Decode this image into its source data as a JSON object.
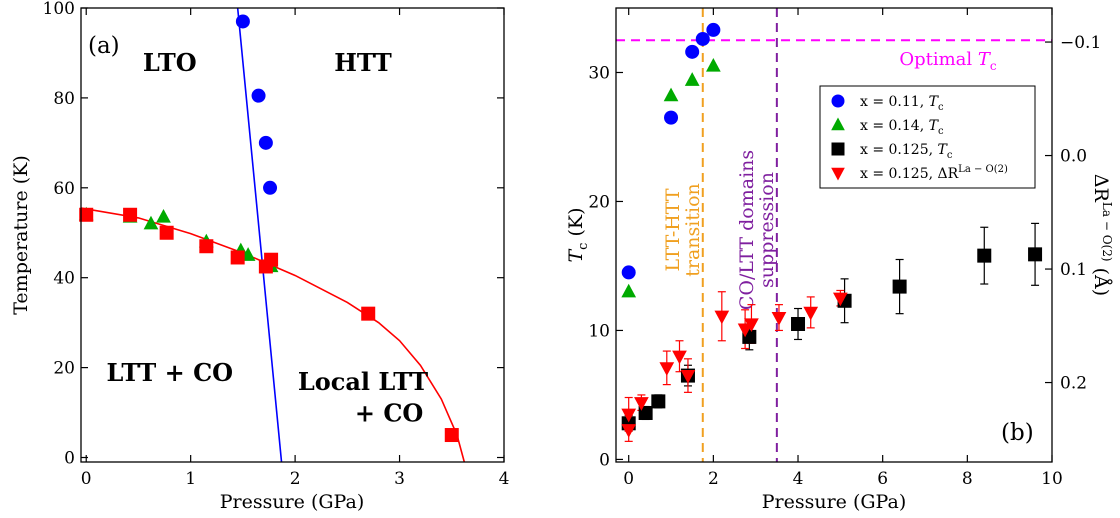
{
  "chart_data": [
    {
      "panel": "(a)",
      "type": "scatter",
      "xlabel": "Pressure (GPa)",
      "ylabel": "Temperature (K)",
      "xlim": [
        -0.05,
        4
      ],
      "ylim": [
        -1,
        100
      ],
      "xticks": [
        "0",
        "1",
        "2",
        "3",
        "4"
      ],
      "yticks": [
        "0",
        "20",
        "40",
        "60",
        "80",
        "100"
      ],
      "region_labels": [
        {
          "text": "LTO",
          "x": 0.8,
          "y": 86
        },
        {
          "text": "HTT",
          "x": 2.65,
          "y": 86
        },
        {
          "text": "LTT + CO",
          "x": 0.8,
          "y": 17
        },
        {
          "text": "Local LTT",
          "x": 2.65,
          "y": 15
        },
        {
          "text": "+ CO",
          "x": 2.9,
          "y": 8
        }
      ],
      "series": [
        {
          "marker": "circle",
          "color": "#0000ff",
          "points": [
            [
              1.5,
              97
            ],
            [
              1.65,
              80.5
            ],
            [
              1.72,
              70
            ],
            [
              1.76,
              60
            ]
          ]
        },
        {
          "marker": "triangle",
          "color": "#00aa00",
          "points": [
            [
              0.0,
              54
            ],
            [
              0.42,
              53.5
            ],
            [
              0.62,
              52
            ],
            [
              0.74,
              53.5
            ],
            [
              1.15,
              48
            ],
            [
              1.48,
              46
            ],
            [
              1.55,
              45
            ],
            [
              1.77,
              42.5
            ]
          ]
        },
        {
          "marker": "square",
          "color": "#ff0000",
          "points": [
            [
              0.0,
              54
            ],
            [
              0.42,
              54
            ],
            [
              0.77,
              50
            ],
            [
              1.15,
              47
            ],
            [
              1.45,
              44.5
            ],
            [
              1.72,
              42.5
            ],
            [
              1.77,
              44
            ],
            [
              2.7,
              32
            ],
            [
              3.5,
              5
            ]
          ]
        }
      ],
      "lines": [
        {
          "name": "LTO-HTT boundary",
          "color": "#0000ff",
          "points": [
            [
              1.45,
              100
            ],
            [
              1.87,
              -1
            ]
          ]
        },
        {
          "name": "LTT boundary",
          "color": "#ff0000",
          "points": [
            [
              -0.05,
              55.5
            ],
            [
              0.5,
              53.3
            ],
            [
              1.0,
              49.8
            ],
            [
              1.5,
              45.5
            ],
            [
              2.0,
              40.5
            ],
            [
              2.5,
              34.5
            ],
            [
              2.8,
              30
            ],
            [
              3.0,
              26
            ],
            [
              3.2,
              20.5
            ],
            [
              3.4,
              13
            ],
            [
              3.55,
              5
            ],
            [
              3.62,
              -1
            ]
          ]
        }
      ]
    },
    {
      "panel": "(b)",
      "type": "scatter",
      "xlabel": "Pressure (GPa)",
      "ylabel_main": "T",
      "ylabel_sub": "c",
      "ylabel_unit": " (K)",
      "ylabel_right_prefix": "ΔR",
      "ylabel_right_sup": "La − O(2)",
      "ylabel_right_unit": " (Å)",
      "xlim": [
        -0.3,
        10
      ],
      "ylim": [
        -0.2,
        35
      ],
      "xticks": [
        "0",
        "2",
        "4",
        "6",
        "8",
        "10"
      ],
      "yticks": [
        "0",
        "10",
        "20",
        "30"
      ],
      "right_ylim": [
        0.27,
        -0.13
      ],
      "right_yticks": [
        "−0.1",
        "0.0",
        "0.1",
        "0.2"
      ],
      "optimal_tc_y": 32.5,
      "optimal_tc_label": "Optimal T",
      "optimal_tc_sub": "c",
      "vlines": [
        {
          "x": 1.75,
          "color": "#f0a020",
          "label1": "LTT-HTT",
          "label2": "transition"
        },
        {
          "x": 3.5,
          "color": "#7f1f9f",
          "label1": "CO/LTT domains",
          "label2": "suppression"
        }
      ],
      "legend": [
        {
          "marker": "circle",
          "color": "#0000ff",
          "prefix": "x = 0.11, ",
          "sym": "T",
          "sub": "c",
          "sup": ""
        },
        {
          "marker": "triangle",
          "color": "#00aa00",
          "prefix": "x = 0.14, ",
          "sym": "T",
          "sub": "c",
          "sup": ""
        },
        {
          "marker": "square",
          "color": "#000000",
          "prefix": "x = 0.125, ",
          "sym": "T",
          "sub": "c",
          "sup": ""
        },
        {
          "marker": "triangle-down",
          "color": "#ff0000",
          "prefix": "x = 0.125, ",
          "sym": "ΔR",
          "sub": "",
          "sup": "La − O(2)"
        }
      ],
      "series": [
        {
          "marker": "circle",
          "color": "#0000ff",
          "points": [
            [
              0.0,
              14.5
            ],
            [
              1.0,
              26.5
            ],
            [
              1.5,
              31.6
            ],
            [
              1.75,
              32.6
            ],
            [
              2.0,
              33.3
            ]
          ]
        },
        {
          "marker": "triangle",
          "color": "#00aa00",
          "points": [
            [
              0.0,
              13.0
            ],
            [
              1.0,
              28.2
            ],
            [
              1.5,
              29.4
            ],
            [
              2.0,
              30.5
            ]
          ]
        },
        {
          "marker": "square",
          "color": "#000000",
          "points": [
            [
              0.0,
              2.8,
              0.6
            ],
            [
              0.4,
              3.6,
              0.5
            ],
            [
              0.7,
              4.5,
              0.5
            ],
            [
              1.4,
              6.5,
              0.8
            ],
            [
              2.85,
              9.5,
              1.0
            ],
            [
              4.0,
              10.5,
              1.2
            ],
            [
              5.1,
              12.3,
              1.7
            ],
            [
              6.4,
              13.4,
              2.1
            ],
            [
              8.4,
              15.8,
              2.2
            ],
            [
              9.6,
              15.9,
              2.4
            ]
          ]
        },
        {
          "marker": "triangle-down",
          "color": "#ff0000",
          "points": [
            [
              0.0,
              3.5,
              1.3
            ],
            [
              0.0,
              2.3,
              0.9
            ],
            [
              0.3,
              4.4,
              0.6
            ],
            [
              0.9,
              7.1,
              1.3
            ],
            [
              1.2,
              8.0,
              1.2
            ],
            [
              1.4,
              6.5,
              1.3
            ],
            [
              2.2,
              11.1,
              1.9
            ],
            [
              2.75,
              10.1,
              1.5
            ],
            [
              2.9,
              10.5,
              1.5
            ],
            [
              3.55,
              11.0,
              1.0
            ],
            [
              4.3,
              11.4,
              1.2
            ],
            [
              5.0,
              12.5,
              0.6
            ]
          ]
        }
      ]
    }
  ]
}
